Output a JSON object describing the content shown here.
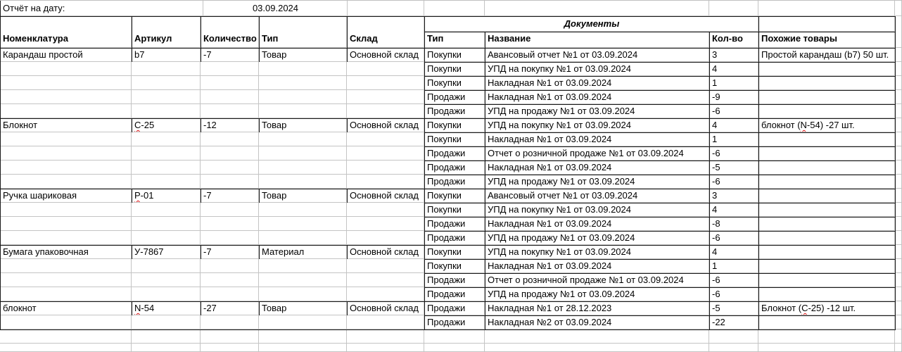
{
  "report": {
    "label": "Отчёт на дату:",
    "date": "03.09.2024"
  },
  "headers": {
    "nomenclature": "Номенклатура",
    "article": "Артикул",
    "quantity": "Количество",
    "type": "Тип",
    "warehouse": "Склад",
    "docs": "Документы",
    "doc_type": "Тип",
    "doc_name": "Название",
    "doc_qty": "Кол-во",
    "similar": "Похожие товары"
  },
  "groups": [
    {
      "nomenclature": "Карандаш простой",
      "article": "b7",
      "quantity": "-7",
      "type": "Товар",
      "warehouse": "Основной склад",
      "similar": "Простой карандаш (b7) 50 шт.",
      "docs": [
        {
          "type": "Покупки",
          "name": "Авансовый отчет №1 от 03.09.2024",
          "qty": "3"
        },
        {
          "type": "Покупки",
          "name": "УПД на покупку №1 от 03.09.2024",
          "qty": "4"
        },
        {
          "type": "Покупки",
          "name": "Накладная №1 от 03.09.2024",
          "qty": "1"
        },
        {
          "type": "Продажи",
          "name": "Накладная №1 от 03.09.2024",
          "qty": "-9"
        },
        {
          "type": "Продажи",
          "name": "УПД на продажу №1 от 03.09.2024",
          "qty": "-6"
        }
      ]
    },
    {
      "nomenclature": "Блокнот",
      "article": [
        "",
        "С",
        "-25"
      ],
      "quantity": "-12",
      "type": "Товар",
      "warehouse": "Основной склад",
      "similar": [
        "блокнот (",
        "N",
        "-54) -27 шт."
      ],
      "docs": [
        {
          "type": "Покупки",
          "name": "УПД на покупку №1 от 03.09.2024",
          "qty": "4"
        },
        {
          "type": "Покупки",
          "name": "Накладная №1 от 03.09.2024",
          "qty": "1"
        },
        {
          "type": "Продажи",
          "name": "Отчет о розничной продаже №1 от 03.09.2024",
          "qty": "-6"
        },
        {
          "type": "Продажи",
          "name": "Накладная №1 от 03.09.2024",
          "qty": "-5"
        },
        {
          "type": "Продажи",
          "name": "УПД на продажу №1 от 03.09.2024",
          "qty": "-6"
        }
      ]
    },
    {
      "nomenclature": "Ручка шариковая",
      "article": [
        "",
        "Р",
        "-01"
      ],
      "quantity": "-7",
      "type": "Товар",
      "warehouse": "Основной склад",
      "similar": "",
      "docs": [
        {
          "type": "Покупки",
          "name": "Авансовый отчет №1 от 03.09.2024",
          "qty": "3"
        },
        {
          "type": "Покупки",
          "name": "УПД на покупку №1 от 03.09.2024",
          "qty": "4"
        },
        {
          "type": "Продажи",
          "name": "Накладная №1 от 03.09.2024",
          "qty": "-8"
        },
        {
          "type": "Продажи",
          "name": "УПД на продажу №1 от 03.09.2024",
          "qty": "-6"
        }
      ]
    },
    {
      "nomenclature": "Бумага упаковочная",
      "article": "У-7867",
      "quantity": "-7",
      "type": "Материал",
      "warehouse": "Основной склад",
      "similar": "",
      "docs": [
        {
          "type": "Покупки",
          "name": "УПД на покупку №1 от 03.09.2024",
          "qty": "4"
        },
        {
          "type": "Покупки",
          "name": "Накладная №1 от 03.09.2024",
          "qty": "1"
        },
        {
          "type": "Продажи",
          "name": "Отчет о розничной продаже №1 от 03.09.2024",
          "qty": "-6"
        },
        {
          "type": "Продажи",
          "name": "УПД на продажу №1 от 03.09.2024",
          "qty": "-6"
        }
      ]
    },
    {
      "nomenclature": "блокнот",
      "article": [
        "",
        "N",
        "-54"
      ],
      "quantity": "-27",
      "type": "Товар",
      "warehouse": "Основной склад",
      "similar": [
        "Блокнот (",
        "С",
        "-25) -12 шт."
      ],
      "docs": [
        {
          "type": "Продажи",
          "name": "Накладная №1 от 28.12.2023",
          "qty": "-5"
        },
        {
          "type": "Продажи",
          "name": "Накладная №2 от 03.09.2024",
          "qty": "-22"
        }
      ]
    }
  ]
}
